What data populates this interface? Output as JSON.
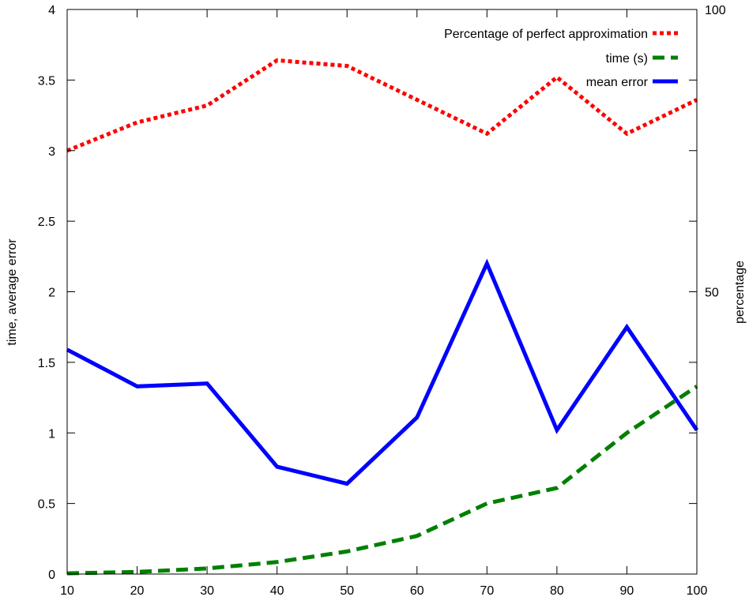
{
  "chart_data": {
    "type": "line",
    "title": "",
    "xlabel": "",
    "ylabel": "time, average error",
    "y2label": "percentage",
    "x": [
      10,
      20,
      30,
      40,
      50,
      60,
      70,
      80,
      90,
      100
    ],
    "xlim": [
      10,
      100
    ],
    "ylim": [
      0,
      4
    ],
    "y2lim": [
      0,
      100
    ],
    "xticks": [
      "10",
      "20",
      "30",
      "40",
      "50",
      "60",
      "70",
      "80",
      "90",
      "100"
    ],
    "yticks": [
      "0",
      "0.5",
      "1",
      "1.5",
      "2",
      "2.5",
      "3",
      "3.5",
      "4"
    ],
    "y2ticks": [
      "50",
      "100"
    ],
    "grid": false,
    "legend_position": "top-right",
    "series": [
      {
        "name": "Percentage of perfect approximation",
        "axis": "y2",
        "style": "dotted",
        "color": "#ff0000",
        "values": [
          75,
          80,
          83,
          91,
          90,
          84,
          78,
          88,
          78,
          84
        ]
      },
      {
        "name": "time (s)",
        "axis": "y",
        "style": "dashed",
        "color": "#008000",
        "values": [
          0.005,
          0.015,
          0.04,
          0.085,
          0.16,
          0.27,
          0.5,
          0.61,
          1.0,
          1.33
        ]
      },
      {
        "name": "mean error",
        "axis": "y",
        "style": "solid",
        "color": "#0000ff",
        "values": [
          1.59,
          1.33,
          1.35,
          0.76,
          0.64,
          1.11,
          2.2,
          1.02,
          1.75,
          1.02
        ]
      }
    ]
  }
}
